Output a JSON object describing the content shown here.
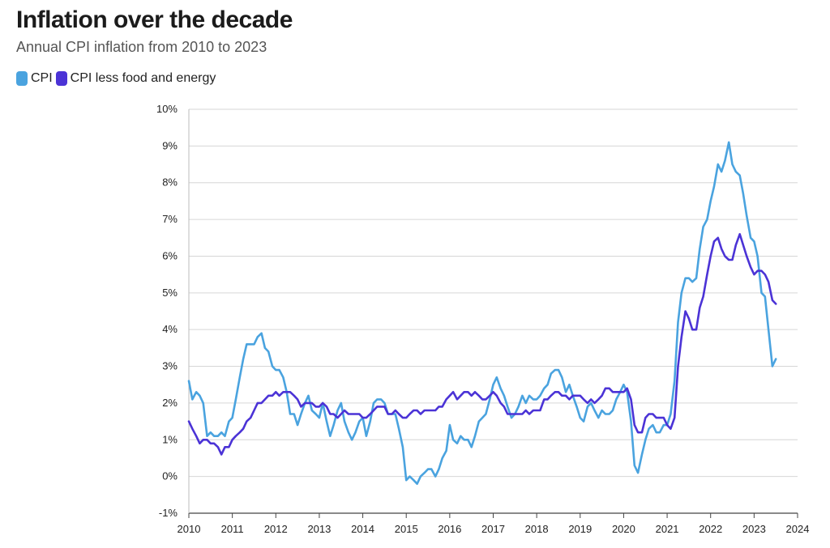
{
  "title": "Inflation over the decade",
  "subtitle": "Annual CPI inflation from 2010 to 2023",
  "chart_data": {
    "type": "line",
    "title": "Inflation over the decade",
    "subtitle": "Annual CPI inflation from 2010 to 2023",
    "xlabel": "",
    "ylabel": "",
    "xlim": [
      2010,
      2024
    ],
    "ylim": [
      -1,
      10
    ],
    "x_ticks": [
      "2010",
      "2011",
      "2012",
      "2013",
      "2014",
      "2015",
      "2016",
      "2017",
      "2018",
      "2019",
      "2020",
      "2021",
      "2022",
      "2023",
      "2024"
    ],
    "y_ticks": [
      "-1%",
      "0%",
      "1%",
      "2%",
      "3%",
      "4%",
      "5%",
      "6%",
      "7%",
      "8%",
      "9%",
      "10%"
    ],
    "y_tick_values": [
      -1,
      0,
      1,
      2,
      3,
      4,
      5,
      6,
      7,
      8,
      9,
      10
    ],
    "grid": "horizontal",
    "legend_position": "top-left",
    "series": [
      {
        "name": "CPI",
        "color": "#4aa3df",
        "x": [
          2010.0,
          2010.08,
          2010.17,
          2010.25,
          2010.33,
          2010.42,
          2010.5,
          2010.58,
          2010.67,
          2010.75,
          2010.83,
          2010.92,
          2011.0,
          2011.08,
          2011.17,
          2011.25,
          2011.33,
          2011.42,
          2011.5,
          2011.58,
          2011.67,
          2011.75,
          2011.83,
          2011.92,
          2012.0,
          2012.08,
          2012.17,
          2012.25,
          2012.33,
          2012.42,
          2012.5,
          2012.58,
          2012.67,
          2012.75,
          2012.83,
          2012.92,
          2013.0,
          2013.08,
          2013.17,
          2013.25,
          2013.33,
          2013.42,
          2013.5,
          2013.58,
          2013.67,
          2013.75,
          2013.83,
          2013.92,
          2014.0,
          2014.08,
          2014.17,
          2014.25,
          2014.33,
          2014.42,
          2014.5,
          2014.58,
          2014.67,
          2014.75,
          2014.83,
          2014.92,
          2015.0,
          2015.08,
          2015.17,
          2015.25,
          2015.33,
          2015.42,
          2015.5,
          2015.58,
          2015.67,
          2015.75,
          2015.83,
          2015.92,
          2016.0,
          2016.08,
          2016.17,
          2016.25,
          2016.33,
          2016.42,
          2016.5,
          2016.58,
          2016.67,
          2016.75,
          2016.83,
          2016.92,
          2017.0,
          2017.08,
          2017.17,
          2017.25,
          2017.33,
          2017.42,
          2017.5,
          2017.58,
          2017.67,
          2017.75,
          2017.83,
          2017.92,
          2018.0,
          2018.08,
          2018.17,
          2018.25,
          2018.33,
          2018.42,
          2018.5,
          2018.58,
          2018.67,
          2018.75,
          2018.83,
          2018.92,
          2019.0,
          2019.08,
          2019.17,
          2019.25,
          2019.33,
          2019.42,
          2019.5,
          2019.58,
          2019.67,
          2019.75,
          2019.83,
          2019.92,
          2020.0,
          2020.08,
          2020.17,
          2020.25,
          2020.33,
          2020.42,
          2020.5,
          2020.58,
          2020.67,
          2020.75,
          2020.83,
          2020.92,
          2021.0,
          2021.08,
          2021.17,
          2021.25,
          2021.33,
          2021.42,
          2021.5,
          2021.58,
          2021.67,
          2021.75,
          2021.83,
          2021.92,
          2022.0,
          2022.08,
          2022.17,
          2022.25,
          2022.33,
          2022.42,
          2022.5,
          2022.58,
          2022.67,
          2022.75,
          2022.83,
          2022.92,
          2023.0,
          2023.08,
          2023.17,
          2023.25,
          2023.33,
          2023.42,
          2023.5
        ],
        "values": [
          2.6,
          2.1,
          2.3,
          2.2,
          2.0,
          1.1,
          1.2,
          1.1,
          1.1,
          1.2,
          1.1,
          1.5,
          1.6,
          2.1,
          2.7,
          3.2,
          3.6,
          3.6,
          3.6,
          3.8,
          3.9,
          3.5,
          3.4,
          3.0,
          2.9,
          2.9,
          2.7,
          2.3,
          1.7,
          1.7,
          1.4,
          1.7,
          2.0,
          2.2,
          1.8,
          1.7,
          1.6,
          2.0,
          1.5,
          1.1,
          1.4,
          1.8,
          2.0,
          1.5,
          1.2,
          1.0,
          1.2,
          1.5,
          1.6,
          1.1,
          1.5,
          2.0,
          2.1,
          2.1,
          2.0,
          1.7,
          1.7,
          1.7,
          1.3,
          0.8,
          -0.1,
          0.0,
          -0.1,
          -0.2,
          0.0,
          0.1,
          0.2,
          0.2,
          0.0,
          0.2,
          0.5,
          0.7,
          1.4,
          1.0,
          0.9,
          1.1,
          1.0,
          1.0,
          0.8,
          1.1,
          1.5,
          1.6,
          1.7,
          2.1,
          2.5,
          2.7,
          2.4,
          2.2,
          1.9,
          1.6,
          1.7,
          1.9,
          2.2,
          2.0,
          2.2,
          2.1,
          2.1,
          2.2,
          2.4,
          2.5,
          2.8,
          2.9,
          2.9,
          2.7,
          2.3,
          2.5,
          2.2,
          1.9,
          1.6,
          1.5,
          1.9,
          2.0,
          1.8,
          1.6,
          1.8,
          1.7,
          1.7,
          1.8,
          2.1,
          2.3,
          2.5,
          2.3,
          1.5,
          0.3,
          0.1,
          0.6,
          1.0,
          1.3,
          1.4,
          1.2,
          1.2,
          1.4,
          1.4,
          1.7,
          2.6,
          4.2,
          5.0,
          5.4,
          5.4,
          5.3,
          5.4,
          6.2,
          6.8,
          7.0,
          7.5,
          7.9,
          8.5,
          8.3,
          8.6,
          9.1,
          8.5,
          8.3,
          8.2,
          7.7,
          7.1,
          6.5,
          6.4,
          6.0,
          5.0,
          4.9,
          4.0,
          3.0,
          3.2
        ]
      },
      {
        "name": "CPI less food and energy",
        "color": "#4b33d6",
        "x": [
          2010.0,
          2010.08,
          2010.17,
          2010.25,
          2010.33,
          2010.42,
          2010.5,
          2010.58,
          2010.67,
          2010.75,
          2010.83,
          2010.92,
          2011.0,
          2011.08,
          2011.17,
          2011.25,
          2011.33,
          2011.42,
          2011.5,
          2011.58,
          2011.67,
          2011.75,
          2011.83,
          2011.92,
          2012.0,
          2012.08,
          2012.17,
          2012.25,
          2012.33,
          2012.42,
          2012.5,
          2012.58,
          2012.67,
          2012.75,
          2012.83,
          2012.92,
          2013.0,
          2013.08,
          2013.17,
          2013.25,
          2013.33,
          2013.42,
          2013.5,
          2013.58,
          2013.67,
          2013.75,
          2013.83,
          2013.92,
          2014.0,
          2014.08,
          2014.17,
          2014.25,
          2014.33,
          2014.42,
          2014.5,
          2014.58,
          2014.67,
          2014.75,
          2014.83,
          2014.92,
          2015.0,
          2015.08,
          2015.17,
          2015.25,
          2015.33,
          2015.42,
          2015.5,
          2015.58,
          2015.67,
          2015.75,
          2015.83,
          2015.92,
          2016.0,
          2016.08,
          2016.17,
          2016.25,
          2016.33,
          2016.42,
          2016.5,
          2016.58,
          2016.67,
          2016.75,
          2016.83,
          2016.92,
          2017.0,
          2017.08,
          2017.17,
          2017.25,
          2017.33,
          2017.42,
          2017.5,
          2017.58,
          2017.67,
          2017.75,
          2017.83,
          2017.92,
          2018.0,
          2018.08,
          2018.17,
          2018.25,
          2018.33,
          2018.42,
          2018.5,
          2018.58,
          2018.67,
          2018.75,
          2018.83,
          2018.92,
          2019.0,
          2019.08,
          2019.17,
          2019.25,
          2019.33,
          2019.42,
          2019.5,
          2019.58,
          2019.67,
          2019.75,
          2019.83,
          2019.92,
          2020.0,
          2020.08,
          2020.17,
          2020.25,
          2020.33,
          2020.42,
          2020.5,
          2020.58,
          2020.67,
          2020.75,
          2020.83,
          2020.92,
          2021.0,
          2021.08,
          2021.17,
          2021.25,
          2021.33,
          2021.42,
          2021.5,
          2021.58,
          2021.67,
          2021.75,
          2021.83,
          2021.92,
          2022.0,
          2022.08,
          2022.17,
          2022.25,
          2022.33,
          2022.42,
          2022.5,
          2022.58,
          2022.67,
          2022.75,
          2022.83,
          2022.92,
          2023.0,
          2023.08,
          2023.17,
          2023.25,
          2023.33,
          2023.42,
          2023.5
        ],
        "values": [
          1.5,
          1.3,
          1.1,
          0.9,
          1.0,
          1.0,
          0.9,
          0.9,
          0.8,
          0.6,
          0.8,
          0.8,
          1.0,
          1.1,
          1.2,
          1.3,
          1.5,
          1.6,
          1.8,
          2.0,
          2.0,
          2.1,
          2.2,
          2.2,
          2.3,
          2.2,
          2.3,
          2.3,
          2.3,
          2.2,
          2.1,
          1.9,
          2.0,
          2.0,
          2.0,
          1.9,
          1.9,
          2.0,
          1.9,
          1.7,
          1.7,
          1.6,
          1.7,
          1.8,
          1.7,
          1.7,
          1.7,
          1.7,
          1.6,
          1.6,
          1.7,
          1.8,
          1.9,
          1.9,
          1.9,
          1.7,
          1.7,
          1.8,
          1.7,
          1.6,
          1.6,
          1.7,
          1.8,
          1.8,
          1.7,
          1.8,
          1.8,
          1.8,
          1.8,
          1.9,
          1.9,
          2.1,
          2.2,
          2.3,
          2.1,
          2.2,
          2.3,
          2.3,
          2.2,
          2.3,
          2.2,
          2.1,
          2.1,
          2.2,
          2.3,
          2.2,
          2.0,
          1.9,
          1.7,
          1.7,
          1.7,
          1.7,
          1.7,
          1.8,
          1.7,
          1.8,
          1.8,
          1.8,
          2.1,
          2.1,
          2.2,
          2.3,
          2.3,
          2.2,
          2.2,
          2.1,
          2.2,
          2.2,
          2.2,
          2.1,
          2.0,
          2.1,
          2.0,
          2.1,
          2.2,
          2.4,
          2.4,
          2.3,
          2.3,
          2.3,
          2.3,
          2.4,
          2.1,
          1.4,
          1.2,
          1.2,
          1.6,
          1.7,
          1.7,
          1.6,
          1.6,
          1.6,
          1.4,
          1.3,
          1.6,
          3.0,
          3.8,
          4.5,
          4.3,
          4.0,
          4.0,
          4.6,
          4.9,
          5.5,
          6.0,
          6.4,
          6.5,
          6.2,
          6.0,
          5.9,
          5.9,
          6.3,
          6.6,
          6.3,
          6.0,
          5.7,
          5.5,
          5.6,
          5.6,
          5.5,
          5.3,
          4.8,
          4.7
        ]
      }
    ]
  }
}
